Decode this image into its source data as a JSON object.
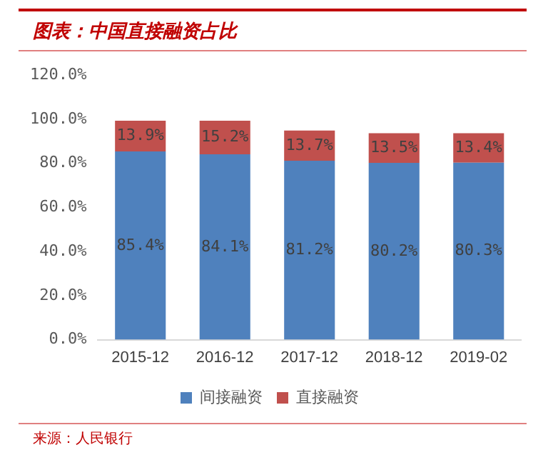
{
  "chart_data": {
    "type": "bar",
    "title": "图表：中国直接融资占比",
    "stacked": true,
    "categories": [
      "2015-12",
      "2016-12",
      "2017-12",
      "2018-12",
      "2019-02"
    ],
    "series": [
      {
        "name": "间接融资",
        "color": "#4f81bd",
        "values": [
          85.4,
          84.1,
          81.2,
          80.2,
          80.3
        ],
        "value_labels": [
          "85.4%",
          "84.1%",
          "81.2%",
          "80.2%",
          "80.3%"
        ]
      },
      {
        "name": "直接融资",
        "color": "#c0504d",
        "values": [
          13.9,
          15.2,
          13.7,
          13.5,
          13.4
        ],
        "value_labels": [
          "13.9%",
          "15.2%",
          "13.7%",
          "13.5%",
          "13.4%"
        ]
      }
    ],
    "ylim": [
      0,
      120
    ],
    "yticks": [
      {
        "value": 0,
        "label": "0.0%"
      },
      {
        "value": 20,
        "label": "20.0%"
      },
      {
        "value": 40,
        "label": "40.0%"
      },
      {
        "value": 60,
        "label": "60.0%"
      },
      {
        "value": 80,
        "label": "80.0%"
      },
      {
        "value": 100,
        "label": "100.0%"
      },
      {
        "value": 120,
        "label": "120.0%"
      }
    ],
    "grid": false,
    "legend": "bottom",
    "annotations": [
      "来源：人民银行"
    ]
  }
}
